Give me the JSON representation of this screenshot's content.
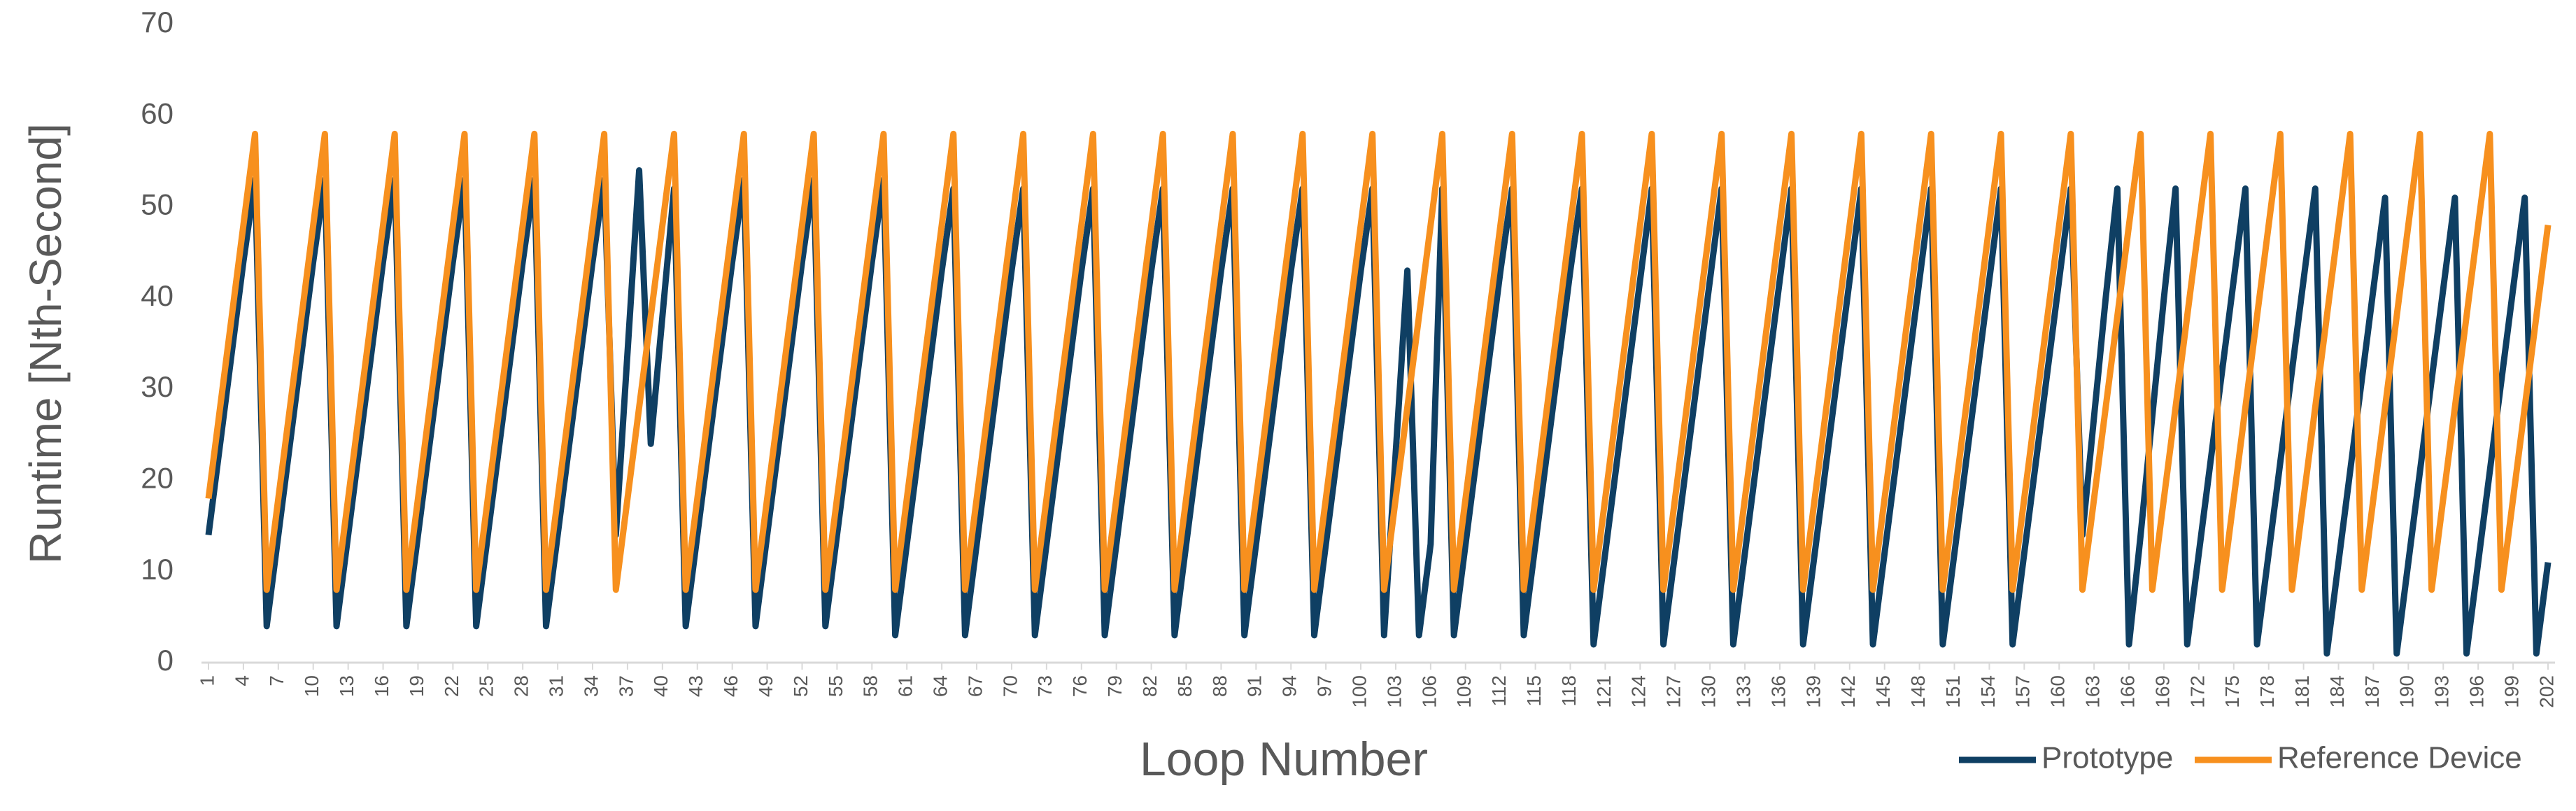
{
  "chart_data": {
    "type": "line",
    "x_label": "Loop Number",
    "y_label": "Runtime [Nth-Second]",
    "x": [
      1,
      2,
      3,
      4,
      5,
      6,
      7,
      8,
      9,
      10,
      11,
      12,
      13,
      14,
      15,
      16,
      17,
      18,
      19,
      20,
      21,
      22,
      23,
      24,
      25,
      26,
      27,
      28,
      29,
      30,
      31,
      32,
      33,
      34,
      35,
      36,
      37,
      38,
      39,
      40,
      41,
      42,
      43,
      44,
      45,
      46,
      47,
      48,
      49,
      50,
      51,
      52,
      53,
      54,
      55,
      56,
      57,
      58,
      59,
      60,
      61,
      62,
      63,
      64,
      65,
      66,
      67,
      68,
      69,
      70,
      71,
      72,
      73,
      74,
      75,
      76,
      77,
      78,
      79,
      80,
      81,
      82,
      83,
      84,
      85,
      86,
      87,
      88,
      89,
      90,
      91,
      92,
      93,
      94,
      95,
      96,
      97,
      98,
      99,
      100,
      101,
      102,
      103,
      104,
      105,
      106,
      107,
      108,
      109,
      110,
      111,
      112,
      113,
      114,
      115,
      116,
      117,
      118,
      119,
      120,
      121,
      122,
      123,
      124,
      125,
      126,
      127,
      128,
      129,
      130,
      131,
      132,
      133,
      134,
      135,
      136,
      137,
      138,
      139,
      140,
      141,
      142,
      143,
      144,
      145,
      146,
      147,
      148,
      149,
      150,
      151,
      152,
      153,
      154,
      155,
      156,
      157,
      158,
      159,
      160,
      161,
      162,
      163,
      164,
      165,
      166,
      167,
      168,
      169,
      170,
      171,
      172,
      173,
      174,
      175,
      176,
      177,
      178,
      179,
      180,
      181,
      182,
      183,
      184,
      185,
      186,
      187,
      188,
      189,
      190,
      191,
      192,
      193,
      194,
      195,
      196,
      197,
      198,
      199,
      200,
      201,
      202
    ],
    "xlim": [
      1,
      202
    ],
    "xticks": [
      1,
      4,
      7,
      10,
      13,
      16,
      19,
      22,
      25,
      28,
      31,
      34,
      37,
      40,
      43,
      46,
      49,
      52,
      55,
      58,
      61,
      64,
      67,
      70,
      73,
      76,
      79,
      82,
      85,
      88,
      91,
      94,
      97,
      100,
      103,
      106,
      109,
      112,
      115,
      118,
      121,
      124,
      127,
      130,
      133,
      136,
      139,
      142,
      145,
      148,
      151,
      154,
      157,
      160,
      163,
      166,
      169,
      172,
      175,
      178,
      181,
      184,
      187,
      190,
      193,
      196,
      199,
      202
    ],
    "ylim": [
      0,
      70
    ],
    "yticks": [
      0,
      10,
      20,
      30,
      40,
      50,
      60,
      70
    ],
    "grid": false,
    "legend": "bottom-right",
    "series": [
      {
        "name": "Prototype",
        "color": "#0f3f63",
        "values": [
          14,
          24,
          34,
          44,
          53,
          4,
          14,
          24,
          34,
          44,
          53,
          4,
          14,
          24,
          34,
          44,
          53,
          4,
          14,
          24,
          34,
          44,
          53,
          4,
          14,
          24,
          34,
          44,
          53,
          4,
          14,
          24,
          34,
          44,
          53,
          14,
          34,
          54,
          24,
          38,
          52,
          4,
          14,
          24,
          34,
          44,
          53,
          4,
          14,
          24,
          34,
          44,
          53,
          4,
          14,
          24,
          34,
          44,
          53,
          3,
          13,
          23,
          33,
          43,
          52,
          3,
          13,
          23,
          33,
          43,
          52,
          3,
          13,
          23,
          33,
          43,
          52,
          3,
          13,
          23,
          33,
          43,
          52,
          3,
          13,
          23,
          33,
          43,
          52,
          3,
          13,
          23,
          33,
          43,
          52,
          3,
          13,
          23,
          33,
          43,
          52,
          3,
          23,
          43,
          3,
          13,
          52,
          3,
          13,
          23,
          33,
          43,
          52,
          3,
          13,
          23,
          33,
          43,
          52,
          2,
          12,
          22,
          32,
          42,
          52,
          2,
          12,
          22,
          32,
          42,
          52,
          2,
          12,
          22,
          32,
          42,
          52,
          2,
          12,
          22,
          32,
          42,
          52,
          2,
          12,
          22,
          32,
          42,
          52,
          2,
          12,
          22,
          32,
          42,
          52,
          2,
          12,
          22,
          32,
          42,
          52,
          14,
          27,
          40,
          52,
          2,
          14,
          27,
          40,
          52,
          2,
          12,
          22,
          32,
          42,
          52,
          2,
          12,
          22,
          32,
          42,
          52,
          1,
          11,
          21,
          31,
          41,
          51,
          1,
          11,
          21,
          31,
          41,
          51,
          1,
          11,
          21,
          31,
          41,
          51,
          1,
          11
        ]
      },
      {
        "name": "Reference Device",
        "color": "#f7901e",
        "values": [
          18,
          28,
          38,
          48,
          58,
          8,
          18,
          28,
          38,
          48,
          58,
          8,
          18,
          28,
          38,
          48,
          58,
          8,
          18,
          28,
          38,
          48,
          58,
          8,
          18,
          28,
          38,
          48,
          58,
          8,
          18,
          28,
          38,
          48,
          58,
          8,
          18,
          28,
          38,
          48,
          58,
          8,
          18,
          28,
          38,
          48,
          58,
          8,
          18,
          28,
          38,
          48,
          58,
          8,
          18,
          28,
          38,
          48,
          58,
          8,
          18,
          28,
          38,
          48,
          58,
          8,
          18,
          28,
          38,
          48,
          58,
          8,
          18,
          28,
          38,
          48,
          58,
          8,
          18,
          28,
          38,
          48,
          58,
          8,
          18,
          28,
          38,
          48,
          58,
          8,
          18,
          28,
          38,
          48,
          58,
          8,
          18,
          28,
          38,
          48,
          58,
          8,
          18,
          28,
          38,
          48,
          58,
          8,
          18,
          28,
          38,
          48,
          58,
          8,
          18,
          28,
          38,
          48,
          58,
          8,
          18,
          28,
          38,
          48,
          58,
          8,
          18,
          28,
          38,
          48,
          58,
          8,
          18,
          28,
          38,
          48,
          58,
          8,
          18,
          28,
          38,
          48,
          58,
          8,
          18,
          28,
          38,
          48,
          58,
          8,
          18,
          28,
          38,
          48,
          58,
          8,
          18,
          28,
          38,
          48,
          58,
          8,
          18,
          28,
          38,
          48,
          58,
          8,
          18,
          28,
          38,
          48,
          58,
          8,
          18,
          28,
          38,
          48,
          58,
          8,
          18,
          28,
          38,
          48,
          58,
          8,
          18,
          28,
          38,
          48,
          58,
          8,
          18,
          28,
          38,
          48,
          58,
          8,
          18,
          28,
          38,
          48
        ]
      }
    ]
  }
}
